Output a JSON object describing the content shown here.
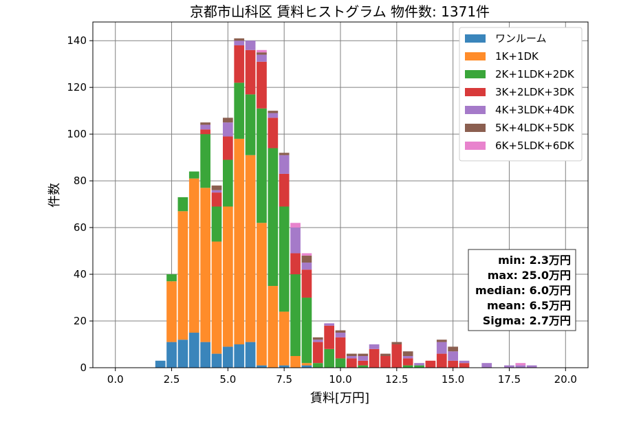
{
  "chart_data": {
    "type": "bar",
    "stacked": true,
    "title": "京都市山科区 賃料ヒストグラム 物件数: 1371件",
    "xlabel": "賃料[万円]",
    "ylabel": "件数",
    "xlim": [
      -1.0,
      21.0
    ],
    "ylim": [
      0,
      148
    ],
    "xticks": [
      0.0,
      2.5,
      5.0,
      7.5,
      10.0,
      12.5,
      15.0,
      17.5,
      20.0
    ],
    "xtick_labels": [
      "0.0",
      "2.5",
      "5.0",
      "7.5",
      "10.0",
      "12.5",
      "15.0",
      "17.5",
      "20.0"
    ],
    "yticks": [
      0,
      20,
      40,
      60,
      80,
      100,
      120,
      140
    ],
    "ytick_labels": [
      "0",
      "20",
      "40",
      "60",
      "80",
      "100",
      "120",
      "140"
    ],
    "grid": true,
    "legend_position": "top-right",
    "x": [
      2.0,
      2.5,
      3.0,
      3.5,
      4.0,
      4.5,
      5.0,
      5.5,
      6.0,
      6.5,
      7.0,
      7.5,
      8.0,
      8.5,
      9.0,
      9.5,
      10.0,
      10.5,
      11.0,
      11.5,
      12.0,
      12.5,
      13.0,
      13.5,
      14.0,
      14.5,
      15.0,
      15.5,
      16.0,
      16.5,
      17.0,
      17.5,
      18.0,
      18.5
    ],
    "bar_width": 0.45,
    "series": [
      {
        "name": "ワンルーム",
        "color": "#3a85bb",
        "values": [
          3,
          11,
          12,
          15,
          11,
          6,
          9,
          10,
          11,
          1,
          0,
          1,
          0,
          1,
          0,
          0,
          0,
          0,
          0,
          0,
          0,
          0,
          0,
          0,
          0,
          0,
          0,
          0,
          0,
          0,
          0,
          0,
          0,
          0
        ]
      },
      {
        "name": "1K+1DK",
        "color": "#ff8c2a",
        "values": [
          0,
          26,
          55,
          66,
          66,
          48,
          60,
          88,
          80,
          61,
          35,
          23,
          5,
          1,
          0,
          0,
          0,
          0,
          0,
          0,
          0,
          0,
          0,
          0,
          0,
          0,
          0,
          0,
          0,
          0,
          0,
          0,
          0,
          0
        ]
      },
      {
        "name": "2K+1LDK+2DK",
        "color": "#3aa63a",
        "values": [
          0,
          3,
          6,
          3,
          23,
          15,
          20,
          24,
          26,
          49,
          59,
          45,
          35,
          28,
          2,
          8,
          4,
          0,
          1,
          0,
          0,
          0,
          1,
          1,
          0,
          0,
          0,
          0,
          0,
          0,
          0,
          0,
          0,
          0
        ]
      },
      {
        "name": "3K+2LDK+3DK",
        "color": "#d83a3a",
        "values": [
          0,
          0,
          0,
          0,
          2,
          6,
          10,
          16,
          19,
          20,
          13,
          14,
          9,
          12,
          9,
          10,
          9,
          4,
          2,
          8,
          5,
          10,
          3,
          0,
          3,
          6,
          3,
          2,
          0,
          0,
          0,
          0,
          0,
          0
        ]
      },
      {
        "name": "4K+3LDK+4DK",
        "color": "#a57ac9",
        "values": [
          0,
          0,
          0,
          0,
          2,
          1,
          6,
          2,
          4,
          3,
          2,
          8,
          11,
          3,
          1,
          1,
          2,
          1,
          2,
          2,
          0,
          0,
          1,
          1,
          0,
          5,
          4,
          1,
          0,
          2,
          0,
          1,
          1,
          1
        ]
      },
      {
        "name": "5K+4LDK+5DK",
        "color": "#8b5f50",
        "values": [
          0,
          0,
          0,
          0,
          1,
          2,
          2,
          1,
          0,
          1,
          1,
          1,
          0,
          3,
          1,
          0,
          1,
          1,
          1,
          0,
          1,
          1,
          2,
          0,
          0,
          1,
          2,
          0,
          0,
          0,
          0,
          0,
          0,
          0
        ]
      },
      {
        "name": "6K+5LDK+6DK",
        "color": "#e883cd",
        "values": [
          0,
          0,
          0,
          0,
          0,
          0,
          0,
          0,
          0,
          1,
          0,
          0,
          2,
          1,
          0,
          0,
          0,
          0,
          0,
          0,
          0,
          0,
          0,
          0,
          0,
          0,
          0,
          0,
          0,
          0,
          0,
          0,
          1,
          0
        ]
      }
    ],
    "stats_box": {
      "min": "min: 2.3万円",
      "max": "max: 25.0万円",
      "median": "median: 6.0万円",
      "mean": "mean: 6.5万円",
      "sigma": "Sigma: 2.7万円"
    }
  }
}
